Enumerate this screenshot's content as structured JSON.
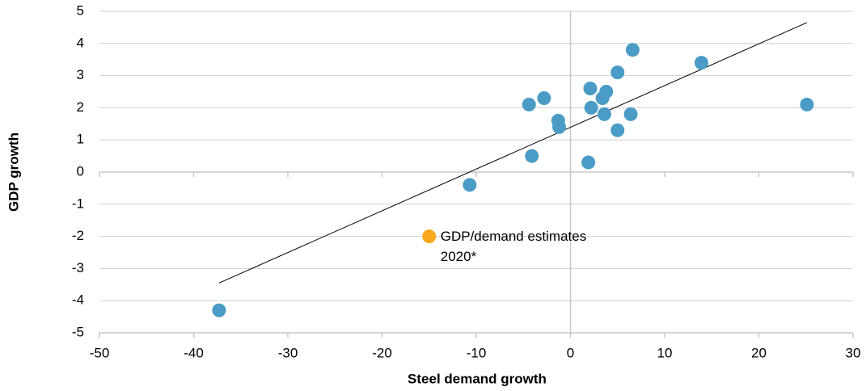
{
  "chart_data": {
    "type": "scatter",
    "x_label": "Steel demand growth",
    "y_label": "GDP growth",
    "xlim": [
      -50,
      30
    ],
    "xticks": [
      -50,
      -40,
      -30,
      -20,
      -10,
      0,
      10,
      20,
      30
    ],
    "ylim": [
      -5,
      5
    ],
    "yticks": [
      -5,
      -4,
      -3,
      -2,
      -1,
      0,
      1,
      2,
      3,
      4,
      5
    ],
    "grid": true,
    "series": [
      {
        "color": "#4a9cc7",
        "x": [
          -37.3,
          -10.7,
          -4.1,
          -4.4,
          -2.8,
          -1.3,
          -1.2,
          1.9,
          2.1,
          2.2,
          3.4,
          3.8,
          3.6,
          5.0,
          5.0,
          6.4,
          6.6,
          13.9,
          25.1
        ],
        "y": [
          -4.3,
          -0.4,
          0.5,
          2.1,
          2.3,
          1.6,
          1.4,
          0.3,
          2.6,
          2.0,
          2.3,
          2.5,
          1.8,
          3.1,
          1.3,
          1.8,
          3.8,
          3.4,
          2.1
        ]
      },
      {
        "color": "#f7a81b",
        "x": [
          -15.0
        ],
        "y": [
          -2.0
        ]
      }
    ],
    "trendline": {
      "x": [
        -37.3,
        25.1
      ],
      "y": [
        -3.45,
        4.65
      ],
      "color": "#000000"
    },
    "annotation": [
      "GDP/demand estimates",
      "2020*"
    ]
  }
}
